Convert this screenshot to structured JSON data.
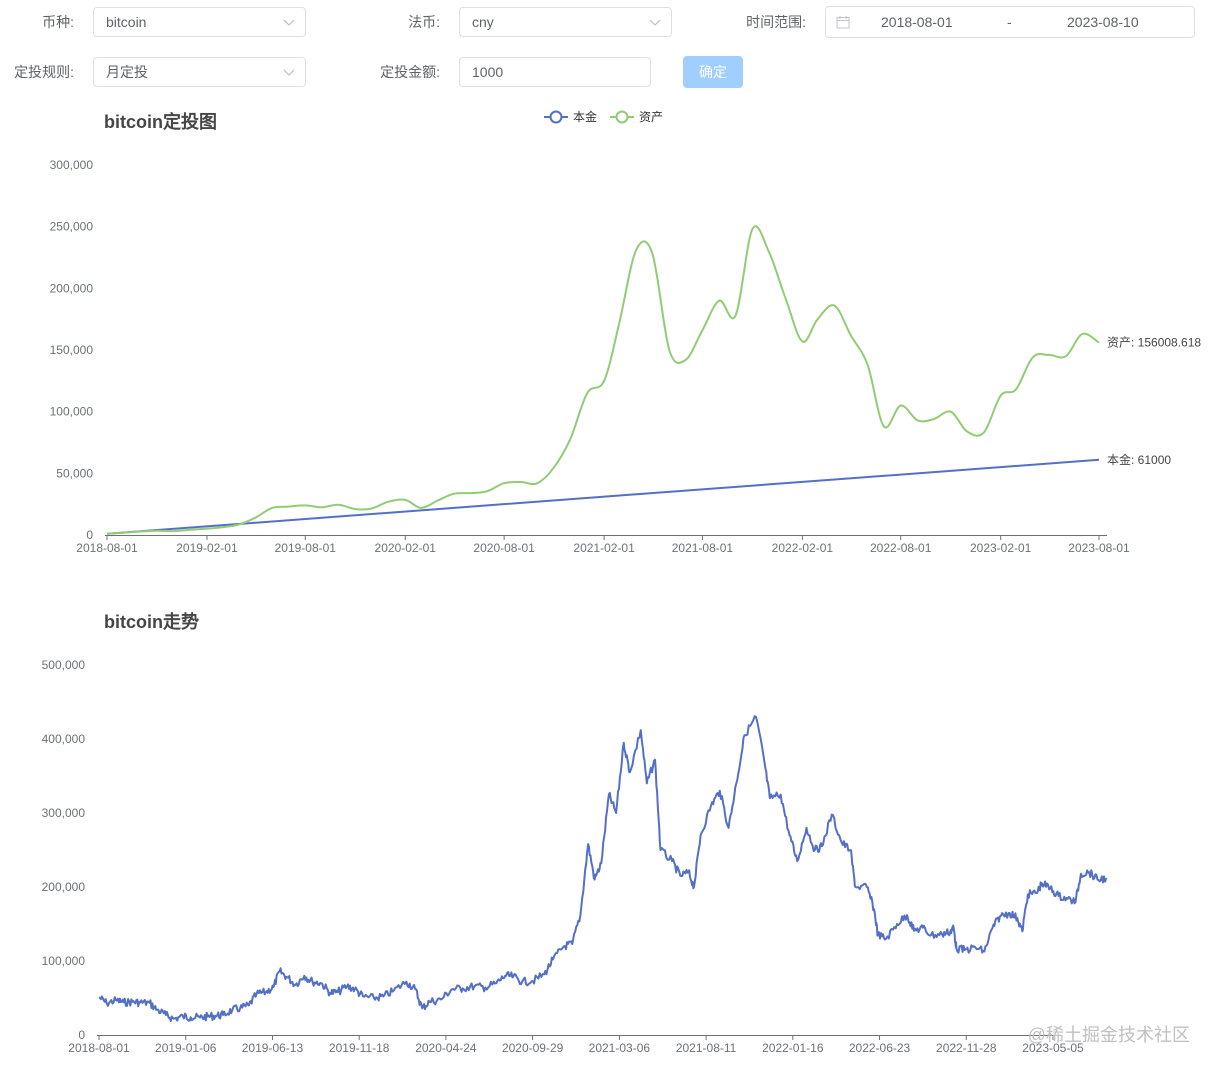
{
  "form": {
    "coin_label": "币种:",
    "coin_value": "bitcoin",
    "fiat_label": "法币:",
    "fiat_value": "cny",
    "range_label": "时间范围:",
    "range_start": "2018-08-01",
    "range_sep": "-",
    "range_end": "2023-08-10",
    "rule_label": "定投规则:",
    "rule_value": "月定投",
    "amount_label": "定投金额:",
    "amount_value": "1000",
    "confirm_label": "确定"
  },
  "watermark": "@稀土掘金技术社区",
  "chart_data": [
    {
      "type": "line",
      "title": "bitcoin定投图",
      "legend": [
        "本金",
        "资产"
      ],
      "legend_position": "top-center",
      "colors": [
        "#5470c6",
        "#91cc75"
      ],
      "x_ticks": [
        "2018-08-01",
        "2019-02-01",
        "2019-08-01",
        "2020-02-01",
        "2020-08-01",
        "2021-02-01",
        "2021-08-01",
        "2022-02-01",
        "2022-08-01",
        "2023-02-01",
        "2023-08-01"
      ],
      "y_ticks": [
        "0",
        "50,000",
        "100,000",
        "150,000",
        "200,000",
        "250,000",
        "300,000"
      ],
      "ylim": [
        0,
        300000
      ],
      "end_labels": [
        "本金: 61000",
        "资产: 156008.618"
      ],
      "series": [
        {
          "name": "本金",
          "points": [
            [
              "2018-08-01",
              1000
            ],
            [
              "2023-08-01",
              61000
            ]
          ]
        },
        {
          "name": "资产",
          "points": [
            [
              "2018-08-01",
              1000
            ],
            [
              "2018-09-01",
              1900
            ],
            [
              "2018-10-01",
              2800
            ],
            [
              "2018-11-01",
              3500
            ],
            [
              "2018-12-01",
              3200
            ],
            [
              "2019-01-01",
              4200
            ],
            [
              "2019-02-01",
              5200
            ],
            [
              "2019-03-01",
              6300
            ],
            [
              "2019-04-01",
              8500
            ],
            [
              "2019-05-01",
              14000
            ],
            [
              "2019-06-01",
              22000
            ],
            [
              "2019-07-01",
              23000
            ],
            [
              "2019-08-01",
              24000
            ],
            [
              "2019-09-01",
              22500
            ],
            [
              "2019-10-01",
              24500
            ],
            [
              "2019-11-01",
              21000
            ],
            [
              "2019-12-01",
              21500
            ],
            [
              "2020-01-01",
              27000
            ],
            [
              "2020-02-01",
              28500
            ],
            [
              "2020-03-01",
              22000
            ],
            [
              "2020-04-01",
              28000
            ],
            [
              "2020-05-01",
              33500
            ],
            [
              "2020-06-01",
              34000
            ],
            [
              "2020-07-01",
              35500
            ],
            [
              "2020-08-01",
              42000
            ],
            [
              "2020-09-01",
              43000
            ],
            [
              "2020-10-01",
              42000
            ],
            [
              "2020-11-01",
              55000
            ],
            [
              "2020-12-01",
              78000
            ],
            [
              "2021-01-01",
              115000
            ],
            [
              "2021-02-01",
              125000
            ],
            [
              "2021-03-01",
              172000
            ],
            [
              "2021-04-01",
              231000
            ],
            [
              "2021-05-01",
              228000
            ],
            [
              "2021-06-01",
              150000
            ],
            [
              "2021-07-01",
              142000
            ],
            [
              "2021-08-01",
              166000
            ],
            [
              "2021-09-01",
              190000
            ],
            [
              "2021-10-01",
              178000
            ],
            [
              "2021-11-01",
              248000
            ],
            [
              "2021-12-01",
              230000
            ],
            [
              "2022-01-01",
              192000
            ],
            [
              "2022-02-01",
              157000
            ],
            [
              "2022-03-01",
              175000
            ],
            [
              "2022-04-01",
              186000
            ],
            [
              "2022-05-01",
              162000
            ],
            [
              "2022-06-01",
              138000
            ],
            [
              "2022-07-01",
              88000
            ],
            [
              "2022-08-01",
              105000
            ],
            [
              "2022-09-01",
              93000
            ],
            [
              "2022-10-01",
              94000
            ],
            [
              "2022-11-01",
              100000
            ],
            [
              "2022-12-01",
              84000
            ],
            [
              "2023-01-01",
              83000
            ],
            [
              "2023-02-01",
              113000
            ],
            [
              "2023-03-01",
              118000
            ],
            [
              "2023-04-01",
              144000
            ],
            [
              "2023-05-01",
              146000
            ],
            [
              "2023-06-01",
              145000
            ],
            [
              "2023-07-01",
              163000
            ],
            [
              "2023-08-01",
              156008.618
            ]
          ]
        }
      ]
    },
    {
      "type": "line",
      "title": "bitcoin走势",
      "colors": [
        "#5470c6"
      ],
      "x_ticks": [
        "2018-08-01",
        "2019-01-06",
        "2019-06-13",
        "2019-11-18",
        "2020-04-24",
        "2020-09-29",
        "2021-03-06",
        "2021-08-11",
        "2022-01-16",
        "2022-06-23",
        "2022-11-28",
        "2023-05-05"
      ],
      "y_ticks": [
        "0",
        "100,000",
        "200,000",
        "300,000",
        "400,000",
        "500,000"
      ],
      "ylim": [
        0,
        500000
      ],
      "series": [
        {
          "name": "bitcoin",
          "points": [
            [
              "2018-08-01",
              51000
            ],
            [
              "2018-08-15",
              43000
            ],
            [
              "2018-09-01",
              47000
            ],
            [
              "2018-09-15",
              44000
            ],
            [
              "2018-10-01",
              45000
            ],
            [
              "2018-10-15",
              44000
            ],
            [
              "2018-11-01",
              43500
            ],
            [
              "2018-11-15",
              34000
            ],
            [
              "2018-12-01",
              27000
            ],
            [
              "2018-12-15",
              22000
            ],
            [
              "2019-01-01",
              25000
            ],
            [
              "2019-01-15",
              24000
            ],
            [
              "2019-02-01",
              23500
            ],
            [
              "2019-02-15",
              25000
            ],
            [
              "2019-03-01",
              26000
            ],
            [
              "2019-03-15",
              27000
            ],
            [
              "2019-04-01",
              34000
            ],
            [
              "2019-04-15",
              36000
            ],
            [
              "2019-05-01",
              40000
            ],
            [
              "2019-05-15",
              55000
            ],
            [
              "2019-06-01",
              58000
            ],
            [
              "2019-06-15",
              65000
            ],
            [
              "2019-06-26",
              86000
            ],
            [
              "2019-07-10",
              78000
            ],
            [
              "2019-07-25",
              68000
            ],
            [
              "2019-08-10",
              80000
            ],
            [
              "2019-08-25",
              72000
            ],
            [
              "2019-09-10",
              70000
            ],
            [
              "2019-09-26",
              57000
            ],
            [
              "2019-10-10",
              58000
            ],
            [
              "2019-10-27",
              66000
            ],
            [
              "2019-11-10",
              62000
            ],
            [
              "2019-11-25",
              52000
            ],
            [
              "2019-12-15",
              50000
            ],
            [
              "2020-01-01",
              52000
            ],
            [
              "2020-01-20",
              60000
            ],
            [
              "2020-02-12",
              72000
            ],
            [
              "2020-02-28",
              62000
            ],
            [
              "2020-03-12",
              36000
            ],
            [
              "2020-03-25",
              45000
            ],
            [
              "2020-04-15",
              48000
            ],
            [
              "2020-05-05",
              62000
            ],
            [
              "2020-05-25",
              63000
            ],
            [
              "2020-06-15",
              66000
            ],
            [
              "2020-07-05",
              64000
            ],
            [
              "2020-07-25",
              70000
            ],
            [
              "2020-08-10",
              80000
            ],
            [
              "2020-08-25",
              79000
            ],
            [
              "2020-09-10",
              72000
            ],
            [
              "2020-09-29",
              73000
            ],
            [
              "2020-10-20",
              82000
            ],
            [
              "2020-11-05",
              102000
            ],
            [
              "2020-11-25",
              120000
            ],
            [
              "2020-12-10",
              123000
            ],
            [
              "2020-12-25",
              162000
            ],
            [
              "2021-01-08",
              258000
            ],
            [
              "2021-01-20",
              210000
            ],
            [
              "2021-02-01",
              232000
            ],
            [
              "2021-02-15",
              325000
            ],
            [
              "2021-02-28",
              300000
            ],
            [
              "2021-03-14",
              395000
            ],
            [
              "2021-03-25",
              355000
            ],
            [
              "2021-04-14",
              412000
            ],
            [
              "2021-04-25",
              340000
            ],
            [
              "2021-05-10",
              372000
            ],
            [
              "2021-05-20",
              250000
            ],
            [
              "2021-06-10",
              235000
            ],
            [
              "2021-06-25",
              215000
            ],
            [
              "2021-07-10",
              220000
            ],
            [
              "2021-07-20",
              200000
            ],
            [
              "2021-08-01",
              270000
            ],
            [
              "2021-08-20",
              310000
            ],
            [
              "2021-09-05",
              330000
            ],
            [
              "2021-09-21",
              280000
            ],
            [
              "2021-10-05",
              340000
            ],
            [
              "2021-10-20",
              405000
            ],
            [
              "2021-11-10",
              430000
            ],
            [
              "2021-11-25",
              370000
            ],
            [
              "2021-12-05",
              320000
            ],
            [
              "2021-12-25",
              325000
            ],
            [
              "2022-01-10",
              270000
            ],
            [
              "2022-01-24",
              235000
            ],
            [
              "2022-02-10",
              280000
            ],
            [
              "2022-02-25",
              250000
            ],
            [
              "2022-03-10",
              255000
            ],
            [
              "2022-03-28",
              298000
            ],
            [
              "2022-04-15",
              260000
            ],
            [
              "2022-05-01",
              250000
            ],
            [
              "2022-05-10",
              200000
            ],
            [
              "2022-05-31",
              200000
            ],
            [
              "2022-06-13",
              170000
            ],
            [
              "2022-06-20",
              135000
            ],
            [
              "2022-07-05",
              130000
            ],
            [
              "2022-07-25",
              150000
            ],
            [
              "2022-08-12",
              162000
            ],
            [
              "2022-08-25",
              141000
            ],
            [
              "2022-09-10",
              145000
            ],
            [
              "2022-09-25",
              135000
            ],
            [
              "2022-10-15",
              136000
            ],
            [
              "2022-10-30",
              140000
            ],
            [
              "2022-11-05",
              145000
            ],
            [
              "2022-11-10",
              117000
            ],
            [
              "2022-11-25",
              115000
            ],
            [
              "2022-12-15",
              118000
            ],
            [
              "2022-12-31",
              113000
            ],
            [
              "2023-01-15",
              145000
            ],
            [
              "2023-01-28",
              160000
            ],
            [
              "2023-02-15",
              165000
            ],
            [
              "2023-03-01",
              158000
            ],
            [
              "2023-03-10",
              140000
            ],
            [
              "2023-03-20",
              190000
            ],
            [
              "2023-04-05",
              192000
            ],
            [
              "2023-04-15",
              205000
            ],
            [
              "2023-04-30",
              198000
            ],
            [
              "2023-05-15",
              188000
            ],
            [
              "2023-06-01",
              184000
            ],
            [
              "2023-06-15",
              180000
            ],
            [
              "2023-06-25",
              218000
            ],
            [
              "2023-07-10",
              220000
            ],
            [
              "2023-07-25",
              210000
            ],
            [
              "2023-08-10",
              212000
            ]
          ]
        }
      ]
    }
  ]
}
